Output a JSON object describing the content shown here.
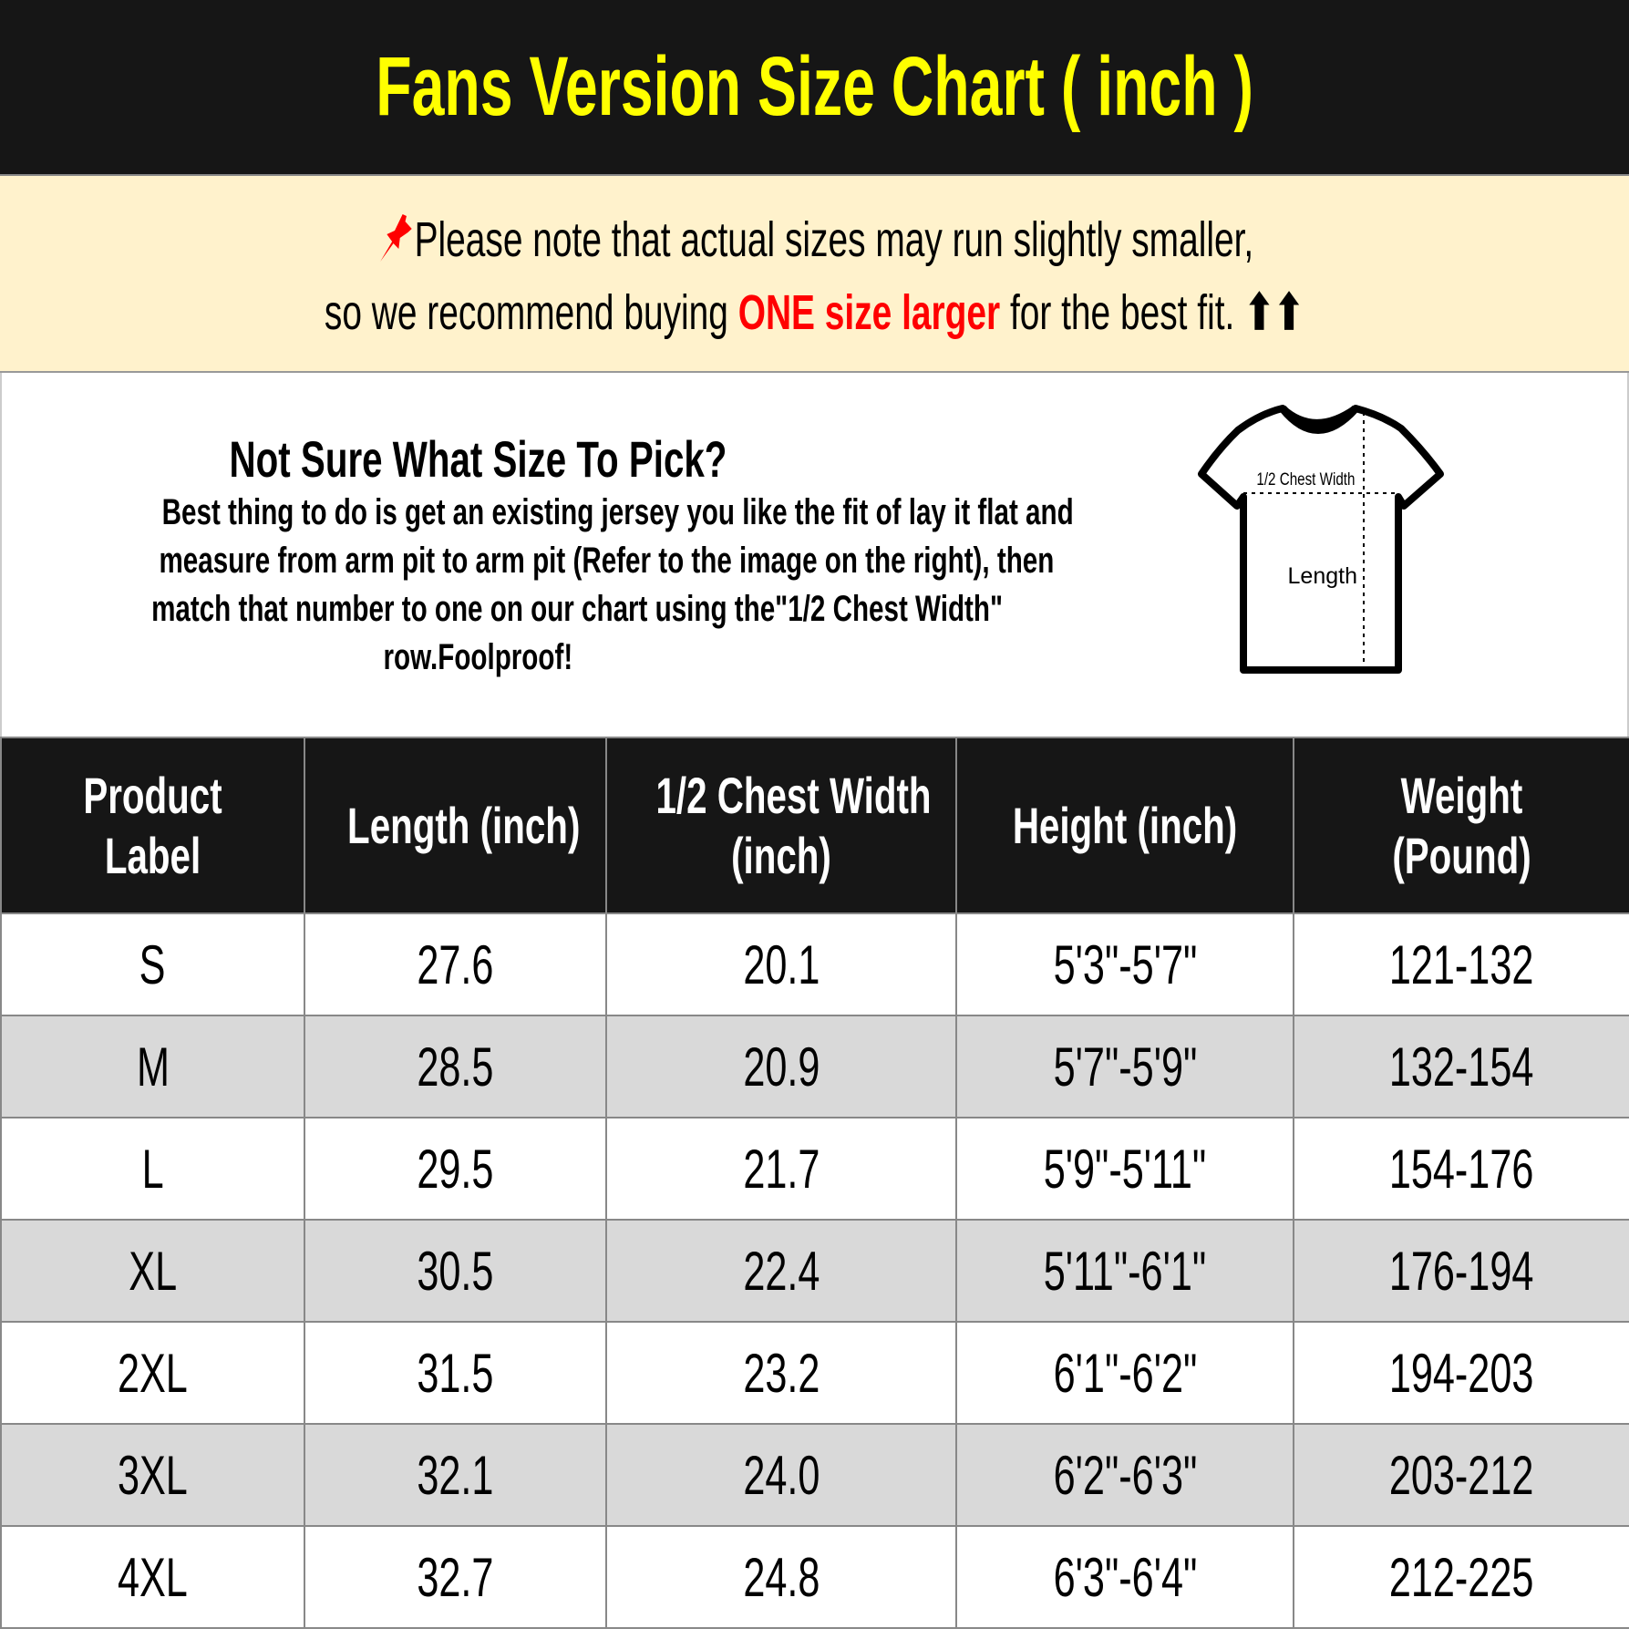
{
  "title": "Fans Version Size Chart ( inch )",
  "notice": {
    "icon": "pushpin-icon",
    "line1": "Please note that actual sizes may run slightly smaller,",
    "line2_pre": "so we recommend buying ",
    "line2_highlight": "ONE size larger",
    "line2_post": " for the best fit.",
    "arrows": "⬆⬆",
    "highlight_color": "#ff0000"
  },
  "help": {
    "title": "Not Sure What Size To Pick?",
    "lines": [
      "Best thing to do is get an existing jersey you like the fit of lay it flat and",
      "measure from arm pit to arm pit (Refer to the image on the right), then",
      "match that number to one on our chart using the\"1/2 Chest Width\"",
      "row.Foolproof!"
    ],
    "diagram": {
      "chest_label": "1/2 Chest Width",
      "length_label": "Length"
    }
  },
  "table": {
    "headers": [
      [
        "Product",
        "Label"
      ],
      [
        "Length (inch)"
      ],
      [
        "1/2 Chest Width",
        "(inch)"
      ],
      [
        "Height (inch)"
      ],
      [
        "Weight",
        "(Pound)"
      ]
    ],
    "rows": [
      [
        "S",
        "27.6",
        "20.1",
        "5'3\"-5'7\"",
        "121-132"
      ],
      [
        "M",
        "28.5",
        "20.9",
        "5'7\"-5'9\"",
        "132-154"
      ],
      [
        "L",
        "29.5",
        "21.7",
        "5'9\"-5'11\"",
        "154-176"
      ],
      [
        "XL",
        "30.5",
        "22.4",
        "5'11\"-6'1\"",
        "176-194"
      ],
      [
        "2XL",
        "31.5",
        "23.2",
        "6'1\"-6'2\"",
        "194-203"
      ],
      [
        "3XL",
        "32.1",
        "24.0",
        "6'2\"-6'3\"",
        "203-212"
      ],
      [
        "4XL",
        "32.7",
        "24.8",
        "6'3\"-6'4\"",
        "212-225"
      ]
    ]
  }
}
